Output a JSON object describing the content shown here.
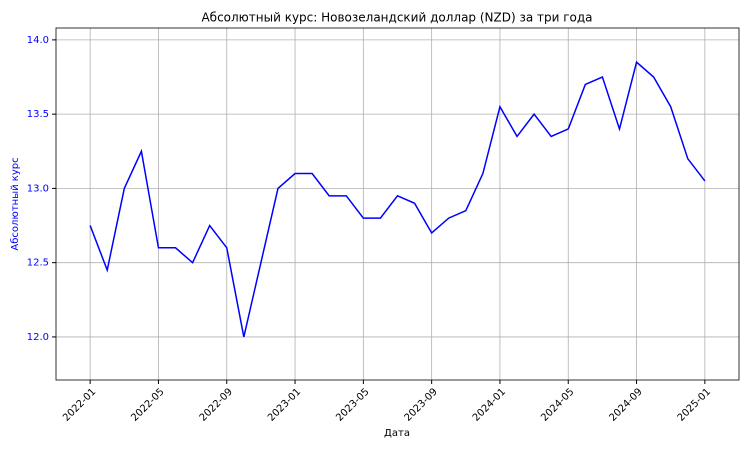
{
  "chart_data": {
    "type": "line",
    "title": "Абсолютный курс: Новозеландский доллар (NZD) за три года",
    "x_label": "Дата",
    "y_label": "Абсолютный курс",
    "x": [
      "2022-01",
      "2022-02",
      "2022-03",
      "2022-04",
      "2022-05",
      "2022-06",
      "2022-07",
      "2022-08",
      "2022-09",
      "2022-10",
      "2022-11",
      "2022-12",
      "2023-01",
      "2023-02",
      "2023-03",
      "2023-04",
      "2023-05",
      "2023-06",
      "2023-07",
      "2023-08",
      "2023-09",
      "2023-10",
      "2023-11",
      "2023-12",
      "2024-01",
      "2024-02",
      "2024-03",
      "2024-04",
      "2024-05",
      "2024-06",
      "2024-07",
      "2024-08",
      "2024-09",
      "2024-10",
      "2024-11",
      "2024-12",
      "2025-01"
    ],
    "series": [
      {
        "name": "NZD",
        "color": "#0000ff",
        "values": [
          12.75,
          12.45,
          13.0,
          13.25,
          12.6,
          12.6,
          12.5,
          12.75,
          12.6,
          12.0,
          12.5,
          13.0,
          13.1,
          13.1,
          12.95,
          12.95,
          12.8,
          12.8,
          12.95,
          12.9,
          12.7,
          12.8,
          12.85,
          13.1,
          13.55,
          13.35,
          13.5,
          13.35,
          13.4,
          13.7,
          13.75,
          13.4,
          13.85,
          13.75,
          13.55,
          13.2,
          13.05
        ]
      }
    ],
    "xlim": [
      "2021-11",
      "2025-03"
    ],
    "xticks": [
      "2022-01",
      "2022-05",
      "2022-09",
      "2023-01",
      "2023-05",
      "2023-09",
      "2024-01",
      "2024-05",
      "2024-09",
      "2025-01"
    ],
    "ylim": [
      11.71,
      14.08
    ],
    "yticks": [
      {
        "value": 12,
        "label": "12.0"
      },
      12.5,
      {
        "value": 13,
        "label": "13.0"
      },
      13.5,
      {
        "value": 14,
        "label": "14.0"
      }
    ],
    "grid": true
  }
}
